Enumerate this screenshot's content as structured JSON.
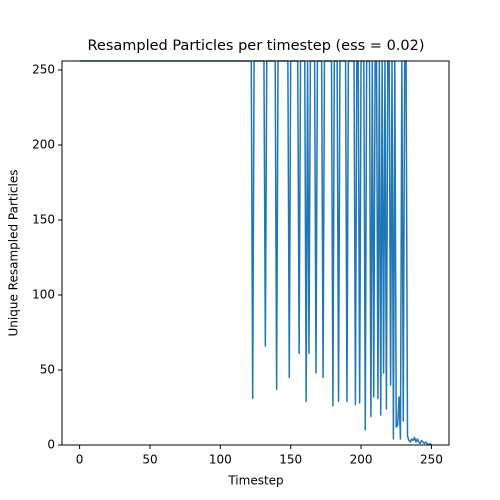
{
  "chart_data": {
    "type": "line",
    "title": "Resampled Particles per timestep (ess = 0.02)",
    "xlabel": "Timestep",
    "ylabel": "Unique Resampled Particles",
    "color": "#1f77b4",
    "xlim": [
      -12.5,
      262.5
    ],
    "ylim": [
      0,
      256
    ],
    "xticks": [
      0,
      50,
      100,
      150,
      200,
      250
    ],
    "yticks": [
      0,
      50,
      100,
      150,
      200,
      250
    ],
    "x": [
      0,
      1,
      2,
      3,
      4,
      5,
      6,
      7,
      8,
      9,
      10,
      11,
      12,
      13,
      14,
      15,
      16,
      17,
      18,
      19,
      20,
      21,
      22,
      23,
      24,
      25,
      26,
      27,
      28,
      29,
      30,
      31,
      32,
      33,
      34,
      35,
      36,
      37,
      38,
      39,
      40,
      41,
      42,
      43,
      44,
      45,
      46,
      47,
      48,
      49,
      50,
      51,
      52,
      53,
      54,
      55,
      56,
      57,
      58,
      59,
      60,
      61,
      62,
      63,
      64,
      65,
      66,
      67,
      68,
      69,
      70,
      71,
      72,
      73,
      74,
      75,
      76,
      77,
      78,
      79,
      80,
      81,
      82,
      83,
      84,
      85,
      86,
      87,
      88,
      89,
      90,
      91,
      92,
      93,
      94,
      95,
      96,
      97,
      98,
      99,
      100,
      101,
      102,
      103,
      104,
      105,
      106,
      107,
      108,
      109,
      110,
      111,
      112,
      113,
      114,
      115,
      116,
      117,
      118,
      119,
      120,
      121,
      122,
      123,
      124,
      125,
      126,
      127,
      128,
      129,
      130,
      131,
      132,
      133,
      134,
      135,
      136,
      137,
      138,
      139,
      140,
      141,
      142,
      143,
      144,
      145,
      146,
      147,
      148,
      149,
      150,
      151,
      152,
      153,
      154,
      155,
      156,
      157,
      158,
      159,
      160,
      161,
      162,
      163,
      164,
      165,
      166,
      167,
      168,
      169,
      170,
      171,
      172,
      173,
      174,
      175,
      176,
      177,
      178,
      179,
      180,
      181,
      182,
      183,
      184,
      185,
      186,
      187,
      188,
      189,
      190,
      191,
      192,
      193,
      194,
      195,
      196,
      197,
      198,
      199,
      200,
      201,
      202,
      203,
      204,
      205,
      206,
      207,
      208,
      209,
      210,
      211,
      212,
      213,
      214,
      215,
      216,
      217,
      218,
      219,
      220,
      221,
      222,
      223,
      224,
      225,
      226,
      227,
      228,
      229,
      230,
      231,
      232,
      233,
      234,
      235,
      236,
      237,
      238,
      239,
      240,
      241,
      242,
      243,
      244,
      245,
      246,
      247,
      248,
      249,
      250
    ],
    "values": [
      256,
      256,
      256,
      256,
      256,
      256,
      256,
      256,
      256,
      256,
      256,
      256,
      256,
      256,
      256,
      256,
      256,
      256,
      256,
      256,
      256,
      256,
      256,
      256,
      256,
      256,
      256,
      256,
      256,
      256,
      256,
      256,
      256,
      256,
      256,
      256,
      256,
      256,
      256,
      256,
      256,
      256,
      256,
      256,
      256,
      256,
      256,
      256,
      256,
      256,
      256,
      256,
      256,
      256,
      256,
      256,
      256,
      256,
      256,
      256,
      256,
      256,
      256,
      256,
      256,
      256,
      256,
      256,
      256,
      256,
      256,
      256,
      256,
      256,
      256,
      256,
      256,
      256,
      256,
      256,
      256,
      256,
      256,
      256,
      256,
      256,
      256,
      256,
      256,
      256,
      256,
      256,
      256,
      256,
      256,
      256,
      256,
      256,
      256,
      256,
      256,
      256,
      256,
      256,
      256,
      256,
      256,
      256,
      256,
      256,
      256,
      256,
      256,
      256,
      256,
      256,
      256,
      256,
      256,
      256,
      256,
      256,
      256,
      31,
      256,
      256,
      256,
      256,
      256,
      256,
      256,
      256,
      66,
      256,
      256,
      256,
      256,
      256,
      256,
      256,
      37,
      256,
      256,
      256,
      256,
      256,
      256,
      256,
      256,
      45,
      256,
      256,
      256,
      256,
      256,
      256,
      61,
      256,
      256,
      256,
      256,
      29,
      256,
      61,
      256,
      256,
      256,
      256,
      48,
      256,
      256,
      256,
      256,
      45,
      256,
      256,
      256,
      256,
      256,
      256,
      26,
      256,
      256,
      256,
      29,
      256,
      256,
      256,
      256,
      256,
      29,
      256,
      256,
      256,
      256,
      256,
      27,
      256,
      256,
      28,
      256,
      256,
      256,
      10,
      256,
      256,
      256,
      19,
      256,
      32,
      256,
      256,
      31,
      256,
      20,
      256,
      48,
      256,
      24,
      256,
      256,
      40,
      256,
      4,
      256,
      12,
      13,
      32,
      4,
      256,
      16,
      256,
      256,
      6,
      3,
      2,
      4,
      3,
      5,
      2,
      4,
      2,
      1,
      3,
      2,
      1,
      2,
      1,
      0,
      1,
      0
    ]
  }
}
